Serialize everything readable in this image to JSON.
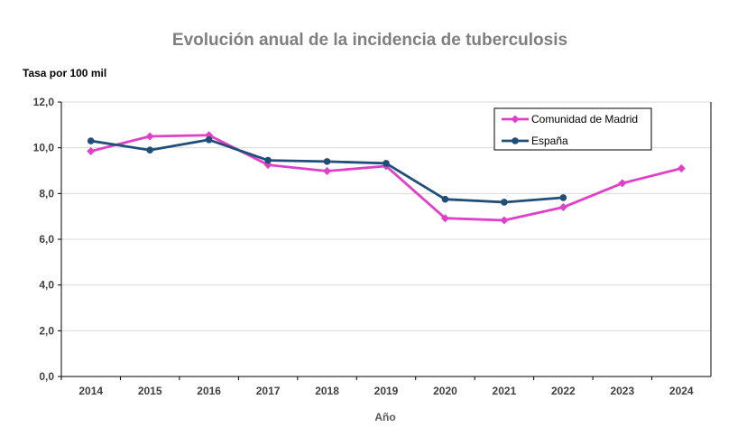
{
  "chart_data": {
    "type": "line",
    "title": "Evolución anual de la incidencia de tuberculosis",
    "ylabel": "Tasa por 100 mil",
    "xlabel": "Año",
    "categories": [
      "2014",
      "2015",
      "2016",
      "2017",
      "2018",
      "2019",
      "2020",
      "2021",
      "2022",
      "2023",
      "2024"
    ],
    "ylim": [
      0,
      12
    ],
    "yticks": [
      0,
      2,
      4,
      6,
      8,
      10,
      12
    ],
    "ytick_labels": [
      "0,0",
      "2,0",
      "4,0",
      "6,0",
      "8,0",
      "10,0",
      "12,0"
    ],
    "grid": true,
    "legend_position": "top-right",
    "series": [
      {
        "name": "Comunidad de Madrid",
        "color": "#e040c8",
        "marker": "diamond",
        "values": [
          9.85,
          10.5,
          10.55,
          9.25,
          8.98,
          9.2,
          6.92,
          6.83,
          7.4,
          8.45,
          9.1
        ]
      },
      {
        "name": "España",
        "color": "#1f4e79",
        "marker": "circle",
        "values": [
          10.3,
          9.9,
          10.35,
          9.45,
          9.4,
          9.32,
          7.75,
          7.62,
          7.82,
          null,
          null
        ]
      }
    ]
  }
}
